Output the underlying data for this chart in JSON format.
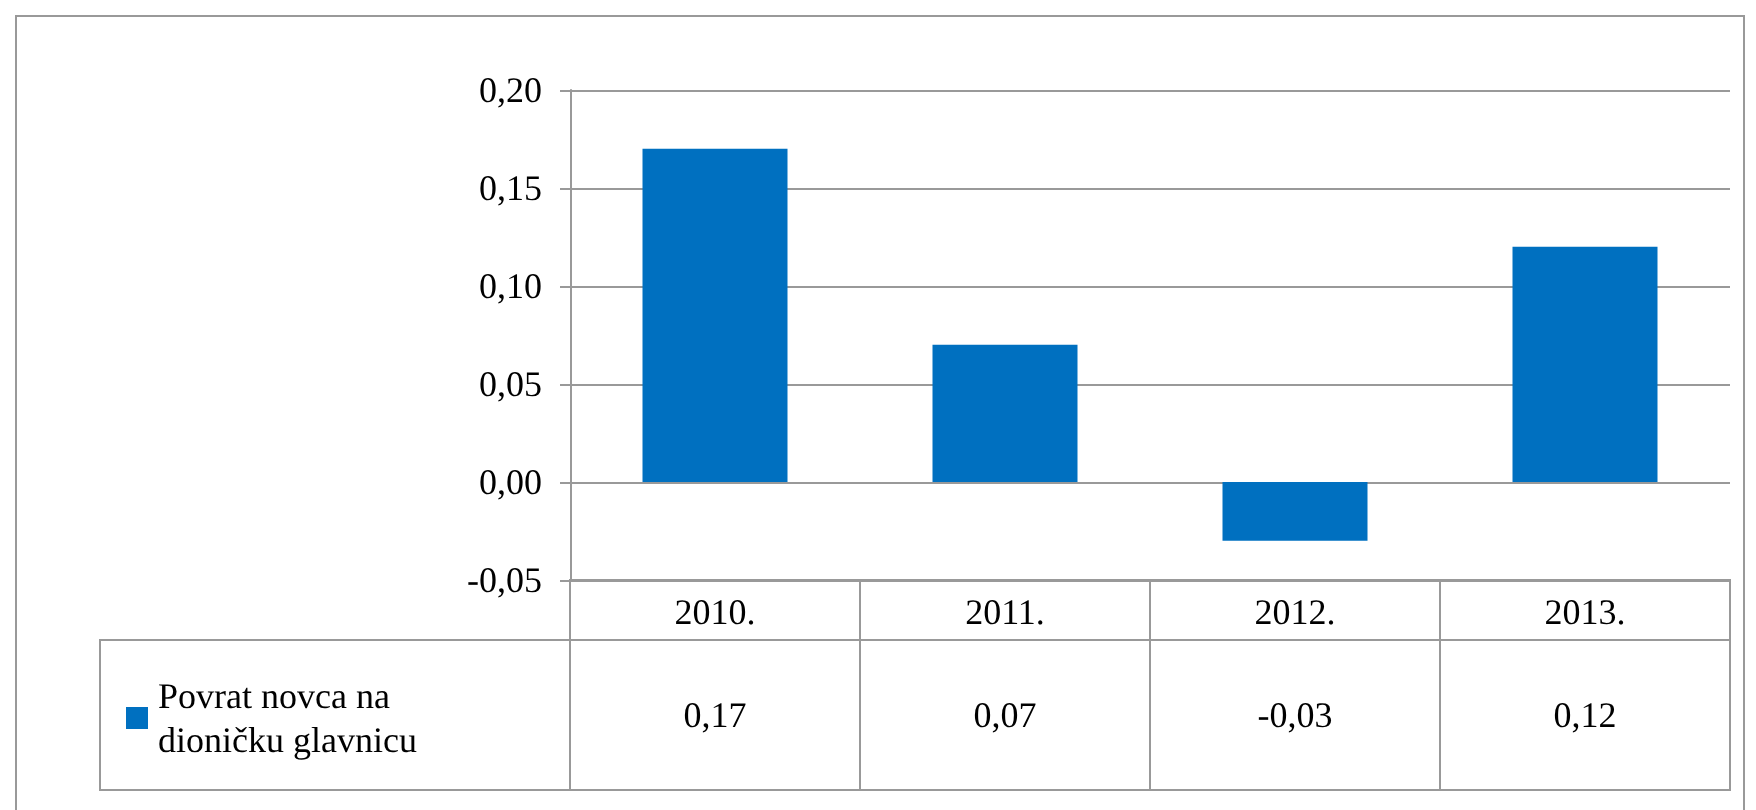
{
  "chart_data": {
    "type": "bar",
    "categories": [
      "2010.",
      "2011.",
      "2012.",
      "2013."
    ],
    "series": [
      {
        "name": "Povrat novca na dioničku glavnicu",
        "color": "#0070c0",
        "values": [
          0.17,
          0.07,
          -0.03,
          0.12
        ],
        "value_labels": [
          "0,17",
          "0,07",
          "-0,03",
          "0,12"
        ]
      }
    ],
    "ylim": [
      -0.05,
      0.2
    ],
    "yticks": [
      {
        "value": -0.05,
        "label": "-0,05"
      },
      {
        "value": 0,
        "label": "0,00"
      },
      {
        "value": 0.05,
        "label": "0,05"
      },
      {
        "value": 0.1,
        "label": "0,10"
      },
      {
        "value": 0.15,
        "label": "0,15"
      },
      {
        "value": 0.2,
        "label": "0,20"
      }
    ],
    "grid": "y",
    "legend": "bottom left"
  }
}
